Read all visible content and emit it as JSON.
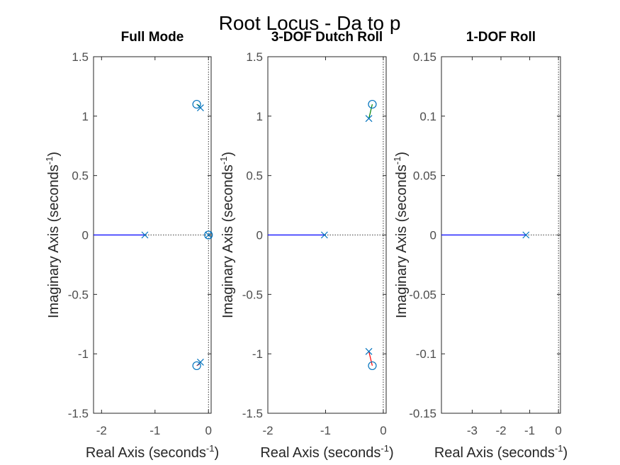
{
  "figure_title": "Root Locus - Da to p",
  "colors": {
    "axes": "#262626",
    "tick_text": "#4d4d4d",
    "locus": "#0000ff",
    "pole_zero": "#0072bd",
    "locus_branch_upper": "#008000",
    "locus_branch_lower": "#ff0000",
    "reference_line": "#000000"
  },
  "chart_data": [
    {
      "type": "scatter",
      "title": "Full Mode",
      "xlabel": "Real Axis (seconds",
      "xlabel_sup": "-1",
      "ylabel": "Imaginary Axis (seconds",
      "ylabel_sup": "-1",
      "xlim": [
        -2.15,
        0.05
      ],
      "ylim": [
        -1.5,
        1.5
      ],
      "xticks": [
        -2,
        -1,
        0
      ],
      "xtick_labels": [
        "-2",
        "-1",
        "0"
      ],
      "yticks": [
        -1.5,
        -1,
        -0.5,
        0,
        0.5,
        1,
        1.5
      ],
      "ytick_labels": [
        "-1.5",
        "-1",
        "-0.5",
        "0",
        "0.5",
        "1",
        "1.5"
      ],
      "poles": [
        {
          "re": -1.19,
          "im": 0
        },
        {
          "re": -0.15,
          "im": 1.07
        },
        {
          "re": -0.15,
          "im": -1.07
        },
        {
          "re": 0.0,
          "im": 0
        }
      ],
      "zeros": [
        {
          "re": -0.22,
          "im": 1.1
        },
        {
          "re": -0.22,
          "im": -1.1
        },
        {
          "re": 0.0,
          "im": 0
        }
      ],
      "locus": [
        {
          "color": "locus",
          "points": [
            [
              -2.15,
              0
            ],
            [
              -1.19,
              0
            ]
          ]
        },
        {
          "color": "locus_branch_upper",
          "points": [
            [
              -0.15,
              1.07
            ],
            [
              -0.18,
              1.09
            ],
            [
              -0.22,
              1.1
            ]
          ]
        },
        {
          "color": "locus_branch_lower",
          "points": [
            [
              -0.15,
              -1.07
            ],
            [
              -0.18,
              -1.09
            ],
            [
              -0.22,
              -1.1
            ]
          ]
        }
      ],
      "zero_reference": {
        "x": 0,
        "y": 0
      }
    },
    {
      "type": "scatter",
      "title": "3-DOF Dutch Roll",
      "xlabel": "Real Axis (seconds",
      "xlabel_sup": "-1",
      "ylabel": "Imaginary Axis (seconds",
      "ylabel_sup": "-1",
      "xlim": [
        -2.0,
        0.05
      ],
      "ylim": [
        -1.5,
        1.5
      ],
      "xticks": [
        -2,
        -1,
        0
      ],
      "xtick_labels": [
        "-2",
        "-1",
        "0"
      ],
      "yticks": [
        -1.5,
        -1,
        -0.5,
        0,
        0.5,
        1,
        1.5
      ],
      "ytick_labels": [
        "-1.5",
        "-1",
        "-0.5",
        "0",
        "0.5",
        "1",
        "1.5"
      ],
      "poles": [
        {
          "re": -1.02,
          "im": 0
        },
        {
          "re": -0.25,
          "im": 0.98
        },
        {
          "re": -0.25,
          "im": -0.98
        }
      ],
      "zeros": [
        {
          "re": -0.19,
          "im": 1.1
        },
        {
          "re": -0.19,
          "im": -1.1
        }
      ],
      "locus": [
        {
          "color": "locus",
          "points": [
            [
              -2.0,
              0
            ],
            [
              -1.02,
              0
            ]
          ]
        },
        {
          "color": "locus_branch_upper",
          "points": [
            [
              -0.25,
              0.98
            ],
            [
              -0.22,
              1.04
            ],
            [
              -0.19,
              1.1
            ]
          ]
        },
        {
          "color": "locus_branch_lower",
          "points": [
            [
              -0.25,
              -0.98
            ],
            [
              -0.22,
              -1.04
            ],
            [
              -0.19,
              -1.1
            ]
          ]
        }
      ],
      "zero_reference": {
        "x": 0,
        "y": 0
      }
    },
    {
      "type": "scatter",
      "title": "1-DOF Roll",
      "xlabel": "Real Axis (seconds",
      "xlabel_sup": "-1",
      "ylabel": "Imaginary Axis (seconds",
      "ylabel_sup": "-1",
      "xlim": [
        -4.07,
        0.07
      ],
      "ylim": [
        -0.15,
        0.15
      ],
      "xticks": [
        -3,
        -2,
        -1,
        0
      ],
      "xtick_labels": [
        "-3",
        "-2",
        "-1",
        "0"
      ],
      "yticks": [
        -0.15,
        -0.1,
        -0.05,
        0,
        0.05,
        0.1,
        0.15
      ],
      "ytick_labels": [
        "-0.15",
        "-0.1",
        "-0.05",
        "0",
        "0.05",
        "0.1",
        "0.15"
      ],
      "poles": [
        {
          "re": -1.13,
          "im": 0
        }
      ],
      "zeros": [],
      "locus": [
        {
          "color": "locus",
          "points": [
            [
              -4.07,
              0
            ],
            [
              -1.13,
              0
            ]
          ]
        }
      ],
      "zero_reference": {
        "x": 0,
        "y": 0
      }
    }
  ]
}
